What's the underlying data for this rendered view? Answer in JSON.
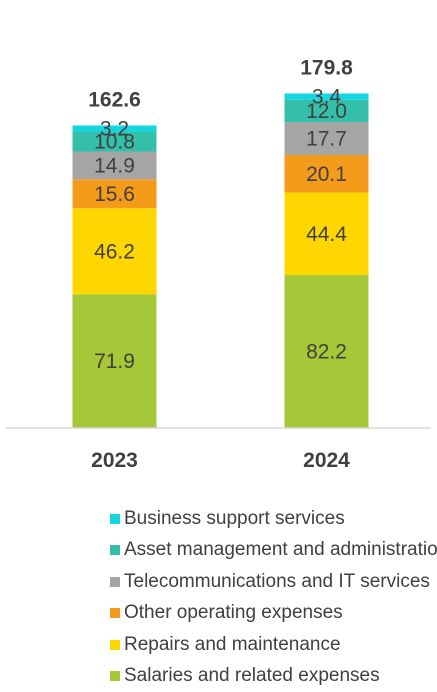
{
  "chart_data": {
    "type": "bar",
    "stacked": true,
    "categories": [
      "2023",
      "2024"
    ],
    "totals": [
      162.6,
      179.8
    ],
    "series": [
      {
        "name": "Salaries and related expenses",
        "values": [
          71.9,
          82.2
        ],
        "color": "#a6c838"
      },
      {
        "name": "Repairs and maintenance",
        "values": [
          46.2,
          44.4
        ],
        "color": "#ffd700"
      },
      {
        "name": "Other operating expenses",
        "values": [
          15.6,
          20.1
        ],
        "color": "#f59b1c"
      },
      {
        "name": "Telecommunications and IT services",
        "values": [
          14.9,
          17.7
        ],
        "color": "#a5a5a5"
      },
      {
        "name": "Asset management and administration",
        "values": [
          10.8,
          12.0
        ],
        "color": "#33bfaa"
      },
      {
        "name": "Business support services",
        "values": [
          3.2,
          3.4
        ],
        "color": "#14d6e0"
      }
    ],
    "legend_position": "bottom",
    "grid": false
  }
}
